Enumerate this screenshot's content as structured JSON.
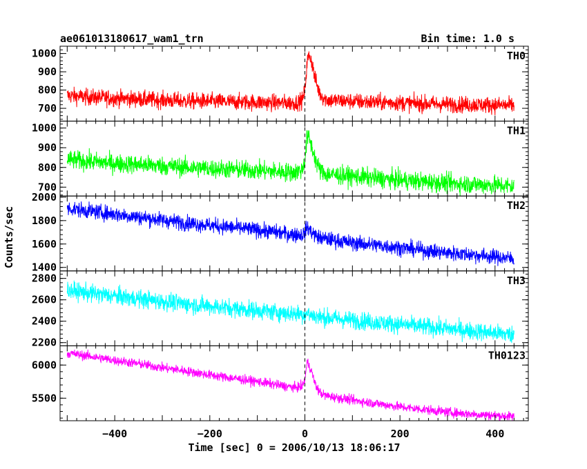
{
  "header": {
    "title": "ae061013180617_wam1_trn",
    "bin_time": "Bin time: 1.0 s"
  },
  "chart_data": {
    "type": "line",
    "xlabel": "Time [sec] 0 = 2006/10/13 18:06:17",
    "ylabel": "Counts/sec",
    "xlim": [
      -515,
      470
    ],
    "xticks": [
      -400,
      -200,
      0,
      200,
      400
    ],
    "xtick_labels": [
      "−400",
      "−200",
      "0",
      "200",
      "400"
    ],
    "event_marker_x": 0,
    "panels": [
      {
        "name": "TH0",
        "color": "#ff0000",
        "ylim": [
          630,
          1040
        ],
        "yticks": [
          700,
          800,
          900,
          1000
        ],
        "ytick_labels": [
          "700",
          "800",
          "900",
          "1000"
        ],
        "x": [
          -500,
          -450,
          -400,
          -350,
          -300,
          -250,
          -200,
          -150,
          -100,
          -50,
          -20,
          -5,
          0,
          5,
          10,
          15,
          20,
          25,
          30,
          35,
          40,
          50,
          100,
          150,
          200,
          250,
          300,
          350,
          400,
          440
        ],
        "y": [
          770,
          760,
          755,
          750,
          745,
          740,
          738,
          735,
          733,
          730,
          730,
          745,
          800,
          960,
          990,
          950,
          880,
          830,
          790,
          770,
          755,
          745,
          738,
          733,
          730,
          725,
          722,
          720,
          718,
          715
        ],
        "noise": 38
      },
      {
        "name": "TH1",
        "color": "#00ff00",
        "ylim": [
          655,
          1035
        ],
        "yticks": [
          700,
          800,
          900,
          1000
        ],
        "ytick_labels": [
          "700",
          "800",
          "900",
          "1000"
        ],
        "x": [
          -500,
          -450,
          -400,
          -350,
          -300,
          -250,
          -200,
          -150,
          -100,
          -50,
          -20,
          -5,
          0,
          5,
          10,
          15,
          20,
          25,
          30,
          35,
          40,
          50,
          100,
          150,
          200,
          250,
          300,
          350,
          400,
          440
        ],
        "y": [
          840,
          830,
          820,
          815,
          808,
          800,
          795,
          790,
          785,
          778,
          775,
          790,
          840,
          960,
          940,
          900,
          860,
          820,
          795,
          780,
          770,
          765,
          755,
          745,
          735,
          728,
          720,
          715,
          710,
          705
        ],
        "noise": 40
      },
      {
        "name": "TH2",
        "color": "#0000ff",
        "ylim": [
          1370,
          2010
        ],
        "yticks": [
          1400,
          1600,
          1800,
          2000
        ],
        "ytick_labels": [
          "1400",
          "1600",
          "1800",
          "2000"
        ],
        "x": [
          -500,
          -450,
          -400,
          -350,
          -300,
          -250,
          -200,
          -150,
          -100,
          -50,
          -20,
          -5,
          0,
          5,
          10,
          15,
          20,
          25,
          30,
          35,
          40,
          50,
          100,
          150,
          200,
          250,
          300,
          350,
          400,
          440
        ],
        "y": [
          1905,
          1880,
          1855,
          1830,
          1805,
          1780,
          1760,
          1740,
          1720,
          1695,
          1680,
          1680,
          1700,
          1745,
          1720,
          1700,
          1680,
          1665,
          1655,
          1650,
          1645,
          1640,
          1610,
          1590,
          1570,
          1545,
          1525,
          1510,
          1490,
          1475
        ],
        "noise": 55
      },
      {
        "name": "TH3",
        "color": "#00ffff",
        "ylim": [
          2170,
          2870
        ],
        "yticks": [
          2200,
          2400,
          2600,
          2800
        ],
        "ytick_labels": [
          "2200",
          "2400",
          "2600",
          "2800"
        ],
        "x": [
          -500,
          -450,
          -400,
          -350,
          -300,
          -250,
          -200,
          -150,
          -100,
          -50,
          -20,
          -5,
          0,
          5,
          10,
          15,
          20,
          25,
          30,
          35,
          40,
          50,
          100,
          150,
          200,
          250,
          300,
          350,
          400,
          440
        ],
        "y": [
          2690,
          2660,
          2635,
          2610,
          2585,
          2560,
          2540,
          2520,
          2500,
          2480,
          2470,
          2465,
          2465,
          2475,
          2465,
          2455,
          2450,
          2445,
          2440,
          2438,
          2435,
          2430,
          2410,
          2390,
          2370,
          2350,
          2330,
          2310,
          2290,
          2275
        ],
        "noise": 70
      },
      {
        "name": "TH0123",
        "color": "#ff00ff",
        "ylim": [
          5160,
          6290
        ],
        "yticks": [
          5500,
          6000
        ],
        "ytick_labels": [
          "5500",
          "6000"
        ],
        "x": [
          -500,
          -450,
          -400,
          -350,
          -300,
          -250,
          -200,
          -150,
          -100,
          -50,
          -20,
          -5,
          0,
          5,
          10,
          15,
          20,
          25,
          30,
          35,
          40,
          50,
          100,
          150,
          200,
          250,
          300,
          350,
          400,
          440
        ],
        "y": [
          6180,
          6130,
          6070,
          6020,
          5960,
          5910,
          5850,
          5800,
          5750,
          5690,
          5660,
          5680,
          5780,
          6050,
          5980,
          5880,
          5750,
          5660,
          5600,
          5570,
          5550,
          5530,
          5470,
          5420,
          5370,
          5330,
          5290,
          5260,
          5240,
          5220
        ],
        "noise": 60
      }
    ]
  }
}
